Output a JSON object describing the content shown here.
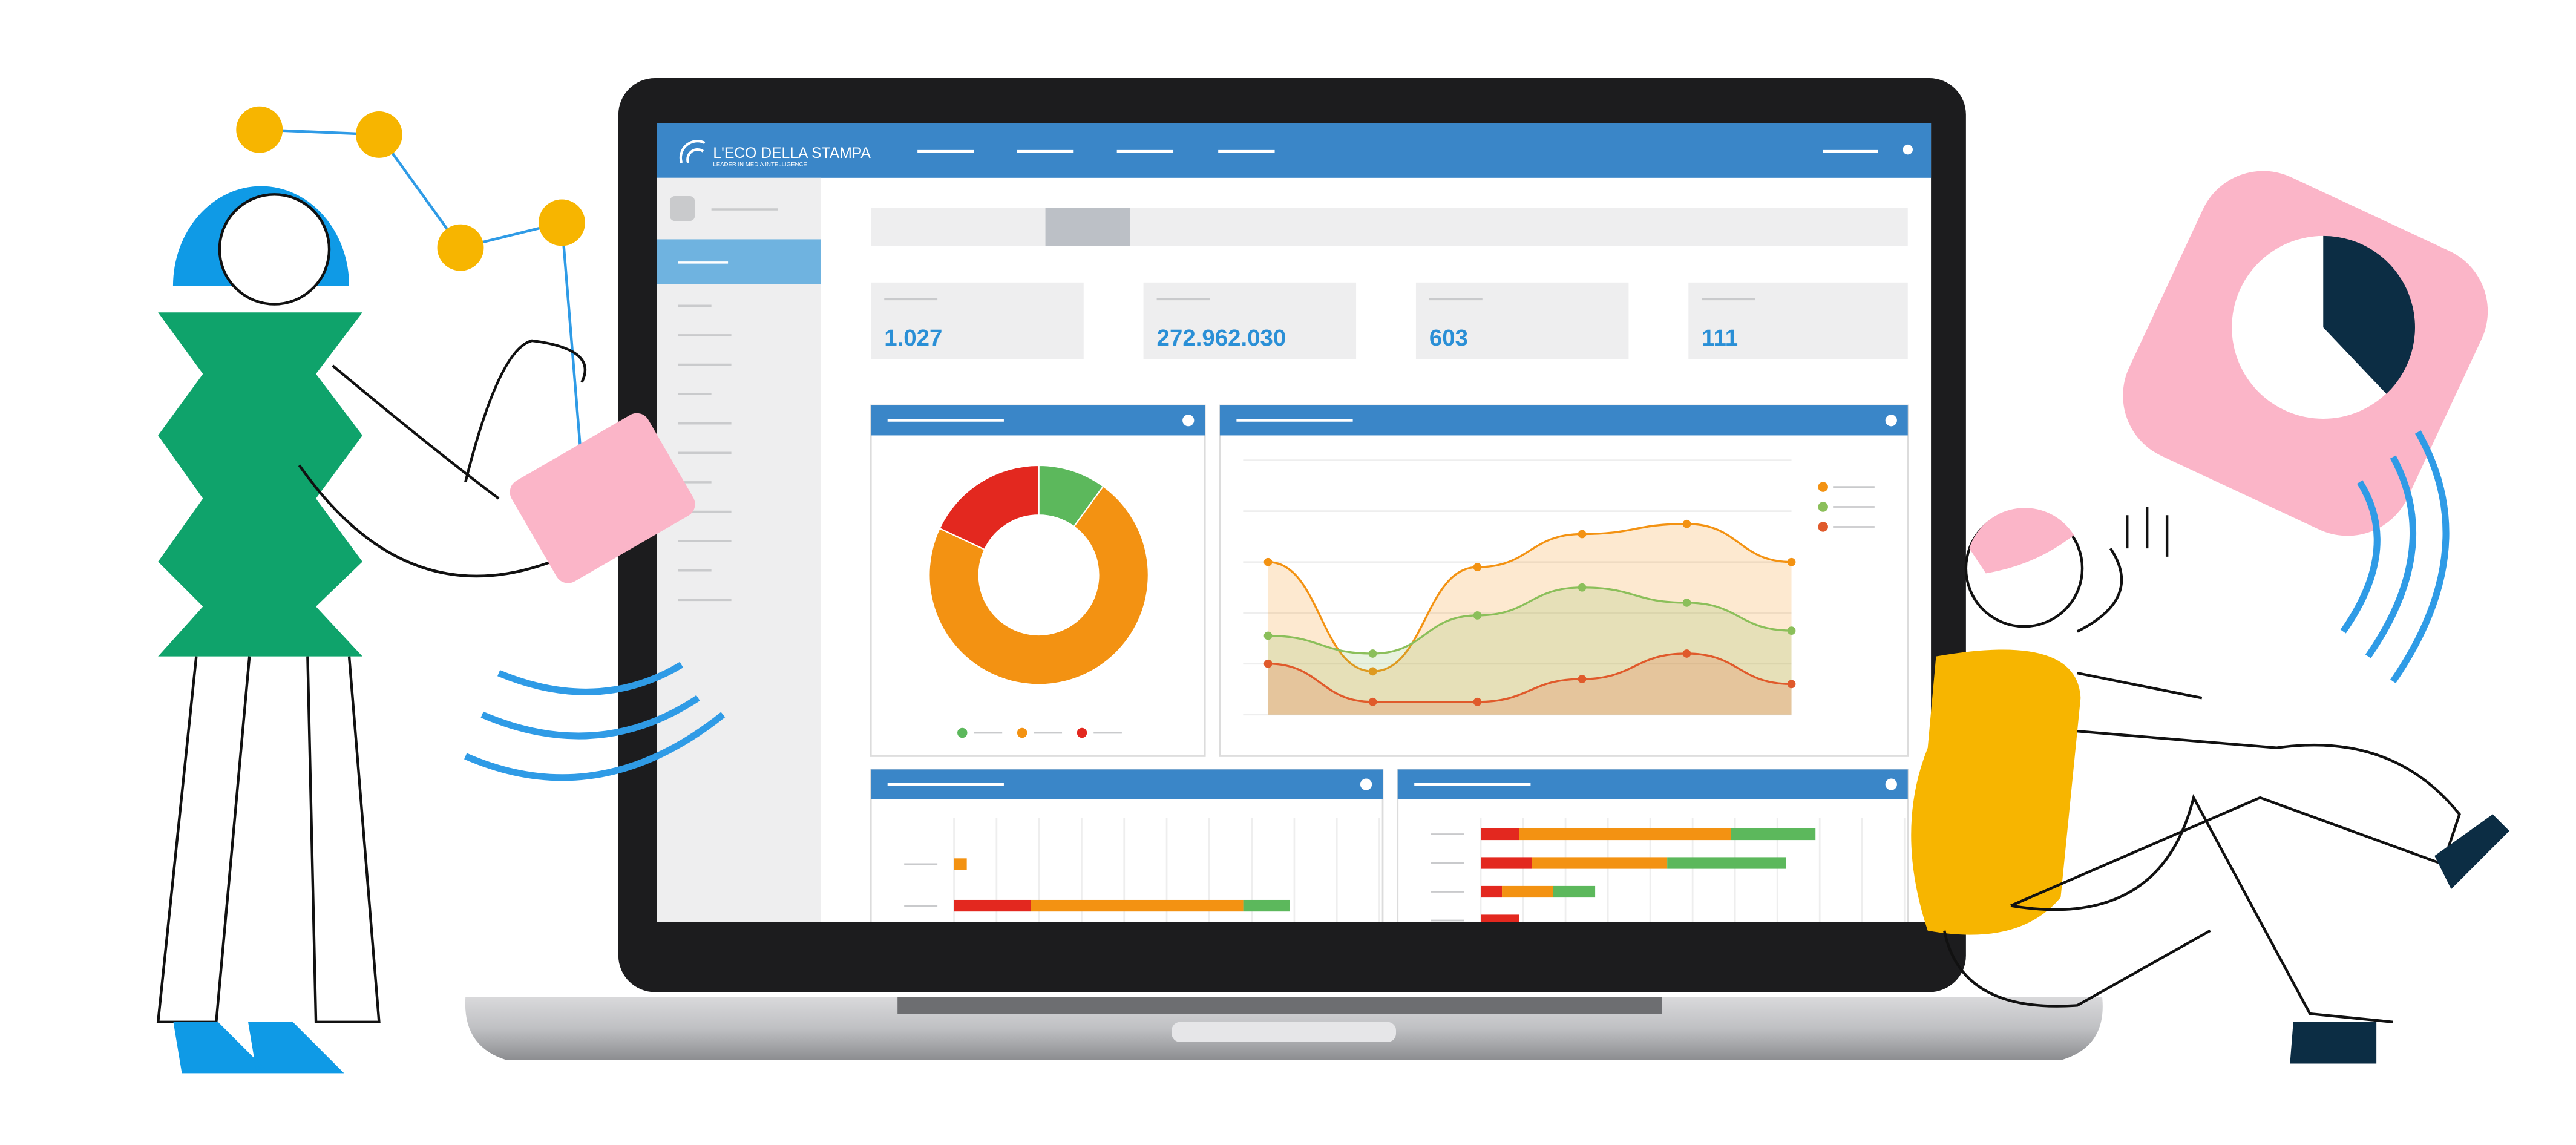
{
  "header": {
    "brand": "L'ECO DELLA STAMPA",
    "tagline": "LEADER IN MEDIA INTELLIGENCE"
  },
  "kpis": [
    "1.027",
    "272.962.030",
    "603",
    "111"
  ],
  "donut": {
    "values": [
      10,
      72,
      18
    ],
    "colors": [
      "#5cb85c",
      "#f39212",
      "#e3281f"
    ]
  },
  "line_chart": {
    "ylim": [
      0,
      100
    ],
    "x": [
      0,
      1,
      2,
      3,
      4,
      5
    ],
    "series": [
      {
        "color": "#f39212",
        "values": [
          60,
          17,
          58,
          71,
          75,
          60
        ]
      },
      {
        "color": "#8bbf5a",
        "values": [
          31,
          24,
          39,
          50,
          44,
          33
        ]
      },
      {
        "color": "#e05a2b",
        "values": [
          20,
          5,
          5,
          14,
          24,
          12
        ]
      }
    ]
  },
  "bar_charts": {
    "xlim": [
      0,
      100
    ],
    "colors": [
      "#e3281f",
      "#f39212",
      "#5cb85c"
    ],
    "left": [
      [
        0,
        3,
        0
      ],
      [
        18,
        50,
        11
      ]
    ],
    "right": [
      [
        9,
        50,
        20
      ],
      [
        12,
        32,
        28
      ],
      [
        5,
        12,
        10
      ],
      [
        9,
        0,
        0
      ]
    ]
  }
}
